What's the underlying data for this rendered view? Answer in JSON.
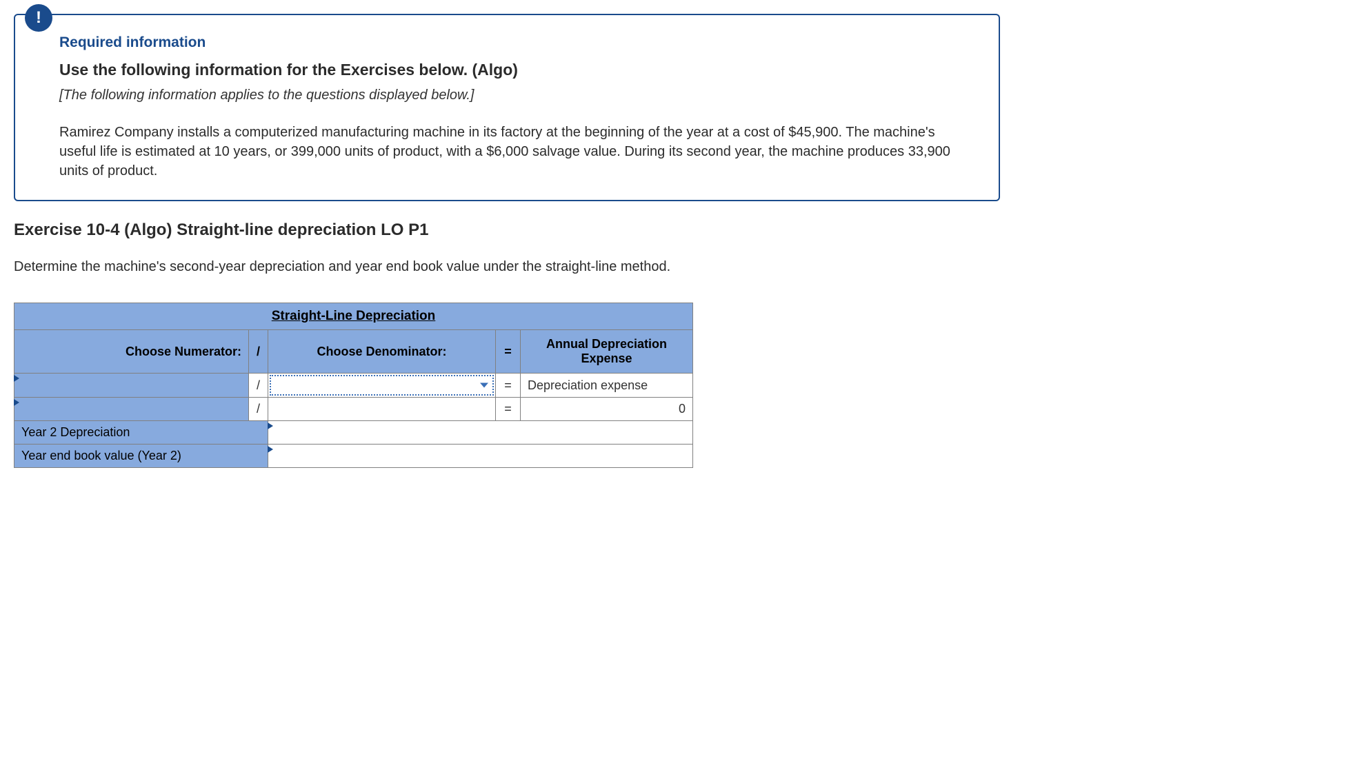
{
  "info_box": {
    "badge_symbol": "!",
    "required_heading": "Required information",
    "use_heading": "Use the following information for the Exercises below. (Algo)",
    "applies_text": "[The following information applies to the questions displayed below.]",
    "body_text": "Ramirez Company installs a computerized manufacturing machine in its factory at the beginning of the year at a cost of $45,900. The machine's useful life is estimated at 10 years, or 399,000 units of product, with a $6,000 salvage value. During its second year, the machine produces 33,900 units of product."
  },
  "exercise": {
    "heading": "Exercise 10-4 (Algo) Straight-line depreciation LO P1",
    "instruction": "Determine the machine's second-year depreciation and year end book value under the straight-line method."
  },
  "table": {
    "title": "Straight-Line Depreciation",
    "header_numerator": "Choose Numerator:",
    "slash": "/",
    "header_denominator": "Choose Denominator:",
    "equals": "=",
    "header_result": "Annual Depreciation Expense",
    "row1_result": "Depreciation expense",
    "row2_result": "0",
    "row3_label": "Year 2 Depreciation",
    "row4_label": "Year end book value (Year 2)"
  },
  "colors": {
    "border_blue": "#1a4b8c",
    "header_blue": "#87aade",
    "text_dark": "#2b2b2b",
    "dropdown_border": "#3a6fb7",
    "grid_border": "#808080",
    "white": "#ffffff"
  }
}
